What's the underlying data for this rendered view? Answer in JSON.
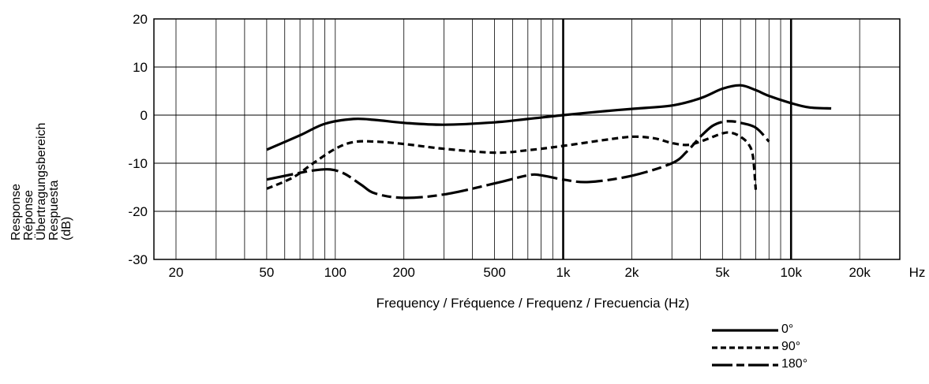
{
  "chart_data": {
    "type": "line",
    "title": "",
    "xlabel": "Frequency / Fréquence / Frequenz / Frecuencia (Hz)",
    "ylabel_lines": [
      "Response",
      "Réponse",
      "Übertragungsbereich",
      "Respuesta",
      "(dB)"
    ],
    "x_scale": "log",
    "xlim": [
      16,
      30000
    ],
    "ylim": [
      -30,
      20
    ],
    "x_ticks": [
      {
        "value": 20,
        "label": "20"
      },
      {
        "value": 50,
        "label": "50"
      },
      {
        "value": 100,
        "label": "100"
      },
      {
        "value": 200,
        "label": "200"
      },
      {
        "value": 500,
        "label": "500"
      },
      {
        "value": 1000,
        "label": "1k"
      },
      {
        "value": 2000,
        "label": "2k"
      },
      {
        "value": 5000,
        "label": "5k"
      },
      {
        "value": 10000,
        "label": "10k"
      },
      {
        "value": 20000,
        "label": "20k"
      }
    ],
    "x_unit_label": "Hz",
    "y_ticks": [
      20,
      10,
      0,
      -10,
      -20,
      -30
    ],
    "grid": true,
    "major_gridlines_x": [
      1000,
      10000
    ],
    "legend_position": "bottom-right",
    "series": [
      {
        "name": "0°",
        "style": "solid",
        "points": [
          [
            50,
            -7.2
          ],
          [
            70,
            -4.2
          ],
          [
            90,
            -1.8
          ],
          [
            120,
            -0.8
          ],
          [
            150,
            -1
          ],
          [
            200,
            -1.6
          ],
          [
            300,
            -2
          ],
          [
            500,
            -1.5
          ],
          [
            700,
            -0.8
          ],
          [
            1000,
            0
          ],
          [
            1500,
            0.8
          ],
          [
            2000,
            1.3
          ],
          [
            3000,
            2
          ],
          [
            4000,
            3.5
          ],
          [
            5000,
            5.5
          ],
          [
            6000,
            6.2
          ],
          [
            7000,
            5.2
          ],
          [
            8000,
            4
          ],
          [
            10000,
            2.5
          ],
          [
            12000,
            1.6
          ],
          [
            15000,
            1.4
          ]
        ]
      },
      {
        "name": "90°",
        "style": "dashed",
        "points": [
          [
            50,
            -15.3
          ],
          [
            65,
            -13
          ],
          [
            80,
            -10
          ],
          [
            100,
            -7
          ],
          [
            120,
            -5.6
          ],
          [
            150,
            -5.5
          ],
          [
            200,
            -6
          ],
          [
            300,
            -7
          ],
          [
            500,
            -7.8
          ],
          [
            700,
            -7.3
          ],
          [
            1000,
            -6.4
          ],
          [
            1500,
            -5.2
          ],
          [
            2000,
            -4.5
          ],
          [
            2500,
            -4.8
          ],
          [
            3000,
            -5.8
          ],
          [
            3500,
            -6.2
          ],
          [
            4000,
            -5.5
          ],
          [
            5000,
            -3.8
          ],
          [
            5500,
            -3.7
          ],
          [
            6000,
            -4.5
          ],
          [
            6500,
            -6
          ],
          [
            6800,
            -8.5
          ],
          [
            7000,
            -15.5
          ]
        ]
      },
      {
        "name": "180°",
        "style": "dashdot",
        "points": [
          [
            50,
            -13.4
          ],
          [
            65,
            -12.3
          ],
          [
            80,
            -11.5
          ],
          [
            95,
            -11.3
          ],
          [
            110,
            -12.2
          ],
          [
            130,
            -14.5
          ],
          [
            150,
            -16.3
          ],
          [
            200,
            -17.2
          ],
          [
            300,
            -16.5
          ],
          [
            500,
            -14.2
          ],
          [
            700,
            -12.5
          ],
          [
            800,
            -12.5
          ],
          [
            1000,
            -13.4
          ],
          [
            1300,
            -13.9
          ],
          [
            2000,
            -12.6
          ],
          [
            3000,
            -10
          ],
          [
            3500,
            -7.5
          ],
          [
            4000,
            -4.5
          ],
          [
            4500,
            -2.3
          ],
          [
            5000,
            -1.4
          ],
          [
            5500,
            -1.3
          ],
          [
            6000,
            -1.6
          ],
          [
            7000,
            -2.6
          ],
          [
            8000,
            -5.5
          ]
        ]
      }
    ]
  }
}
